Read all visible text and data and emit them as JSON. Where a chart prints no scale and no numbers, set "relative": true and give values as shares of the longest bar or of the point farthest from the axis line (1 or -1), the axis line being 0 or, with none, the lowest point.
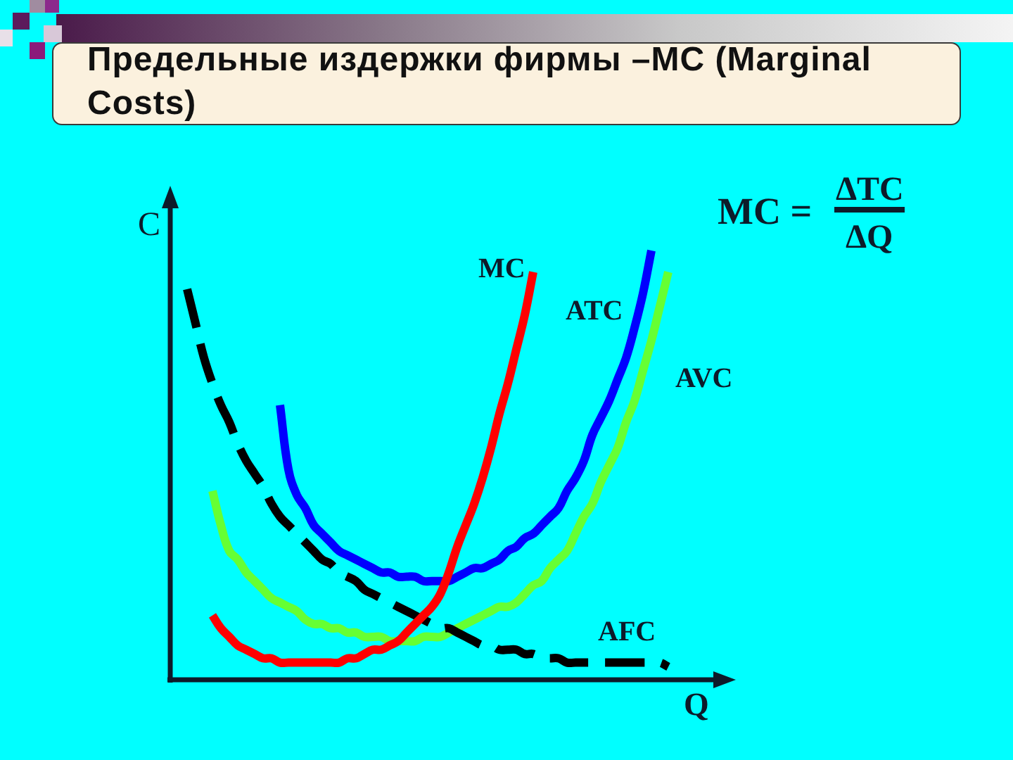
{
  "chart_data": {
    "type": "line",
    "title": "Предельные издержки фирмы –MC (Marginal Costs)",
    "xlabel": "Q",
    "ylabel": "C",
    "relative": true,
    "annotations": [
      "MC =",
      "ΔTC",
      "ΔQ"
    ],
    "categories": [
      null,
      null,
      null,
      null,
      null,
      null,
      null,
      null,
      null,
      null,
      null,
      null,
      null,
      null,
      null,
      null,
      null,
      null,
      null,
      null,
      null,
      null,
      null,
      null,
      null,
      null,
      null,
      null,
      null,
      null,
      null,
      null,
      null,
      null,
      null,
      null,
      null,
      null,
      null,
      null,
      null,
      null,
      null,
      null,
      null,
      null,
      null,
      null,
      null,
      null,
      null,
      null,
      null,
      null,
      null,
      null,
      null,
      null,
      null,
      null,
      null,
      null,
      null,
      null,
      null,
      null,
      null,
      null
    ],
    "series": [
      {
        "name": "MC",
        "color": "#ff0000",
        "values": [
          null,
          null,
          null,
          null,
          null,
          0.15,
          0.12,
          0.1,
          0.08,
          0.07,
          0.06,
          0.05,
          0.05,
          0.04,
          0.04,
          0.04,
          0.04,
          0.04,
          0.04,
          0.04,
          0.04,
          0.05,
          0.05,
          0.06,
          0.07,
          0.07,
          0.08,
          0.09,
          0.11,
          0.13,
          0.15,
          0.17,
          0.2,
          0.25,
          0.31,
          0.36,
          0.41,
          0.47,
          0.54,
          0.62,
          0.69,
          0.77,
          0.85,
          0.95,
          null,
          null,
          null,
          null,
          null,
          null,
          null,
          null,
          null,
          null,
          null,
          null,
          null,
          null,
          null,
          null,
          null,
          null,
          null,
          null,
          null,
          null,
          null,
          null
        ]
      },
      {
        "name": "AFC",
        "color": "#000000",
        "line_style": "dashed",
        "values": [
          null,
          null,
          0.91,
          0.83,
          0.75,
          0.69,
          0.64,
          0.6,
          0.55,
          0.51,
          0.48,
          0.45,
          0.41,
          0.38,
          0.36,
          0.34,
          0.32,
          0.3,
          0.28,
          0.27,
          0.25,
          0.24,
          0.23,
          0.21,
          0.2,
          0.19,
          0.18,
          0.17,
          0.16,
          0.15,
          0.14,
          0.13,
          0.12,
          0.12,
          0.11,
          0.1,
          0.09,
          0.08,
          0.08,
          0.07,
          0.07,
          0.07,
          0.06,
          0.06,
          0.05,
          0.05,
          0.05,
          0.04,
          0.04,
          0.04,
          0.04,
          0.04,
          0.04,
          0.04,
          0.04,
          0.04,
          0.04,
          0.04,
          0.04,
          0.03,
          null,
          null,
          null,
          null,
          null,
          null,
          null,
          null
        ]
      },
      {
        "name": "ATC",
        "color": "#0000ff",
        "values": [
          null,
          null,
          null,
          null,
          null,
          null,
          null,
          null,
          null,
          null,
          null,
          null,
          null,
          0.64,
          0.49,
          0.43,
          0.4,
          0.36,
          0.34,
          0.32,
          0.3,
          0.29,
          0.28,
          0.27,
          0.26,
          0.25,
          0.25,
          0.24,
          0.24,
          0.24,
          0.23,
          0.23,
          0.23,
          0.23,
          0.24,
          0.25,
          0.26,
          0.26,
          0.27,
          0.28,
          0.3,
          0.31,
          0.33,
          0.34,
          0.36,
          0.38,
          0.4,
          0.44,
          0.47,
          0.51,
          0.57,
          0.61,
          0.65,
          0.7,
          0.75,
          0.82,
          0.9,
          1,
          null,
          null,
          null,
          null,
          null,
          null,
          null,
          null,
          null,
          null
        ]
      },
      {
        "name": "AVC",
        "color": "#66ff33",
        "values": [
          null,
          null,
          null,
          null,
          null,
          0.44,
          0.36,
          0.3,
          0.28,
          0.25,
          0.23,
          0.21,
          0.19,
          0.18,
          0.17,
          0.16,
          0.14,
          0.13,
          0.13,
          0.12,
          0.12,
          0.11,
          0.11,
          0.1,
          0.1,
          0.1,
          0.09,
          0.09,
          0.09,
          0.09,
          0.1,
          0.1,
          0.1,
          0.11,
          0.12,
          0.13,
          0.14,
          0.15,
          0.16,
          0.17,
          0.17,
          0.18,
          0.2,
          0.22,
          0.23,
          0.26,
          0.28,
          0.3,
          0.34,
          0.38,
          0.41,
          0.46,
          0.5,
          0.54,
          0.6,
          0.65,
          0.72,
          0.79,
          0.87,
          0.95,
          null,
          null,
          null,
          null,
          null,
          null,
          null,
          null
        ]
      }
    ]
  }
}
